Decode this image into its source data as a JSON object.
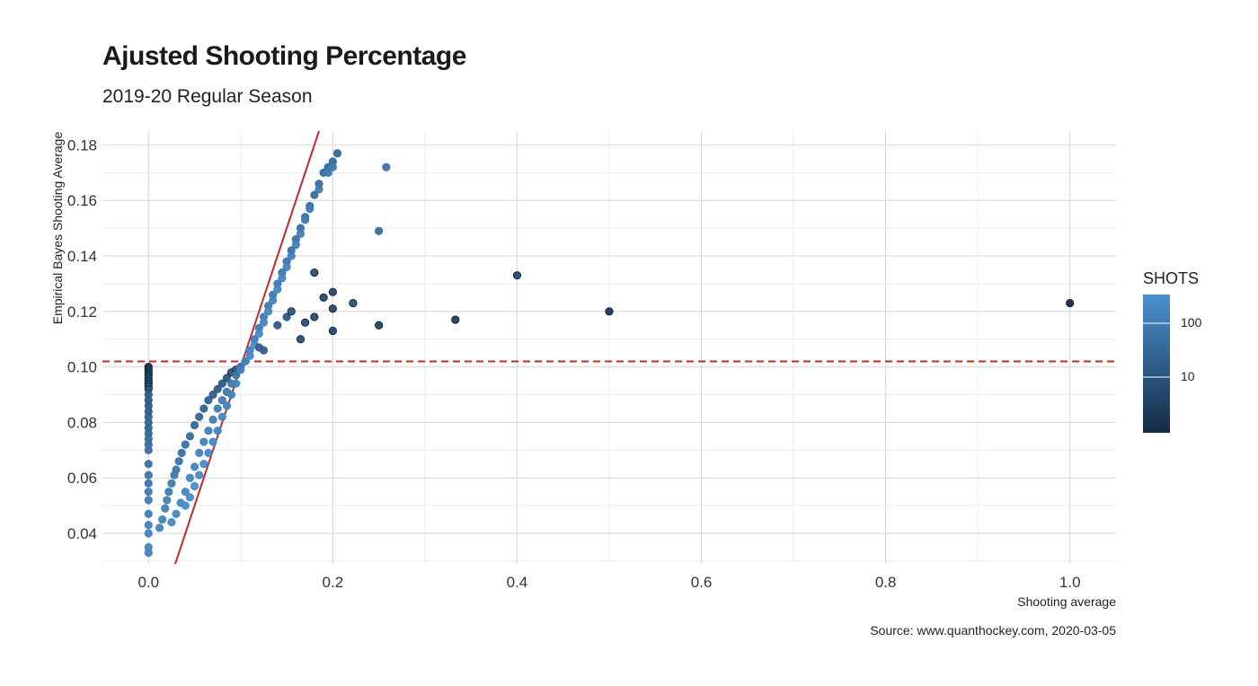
{
  "title": "Ajusted Shooting Percentage",
  "subtitle": "2019-20 Regular Season",
  "caption": "Source: www.quanthockey.com, 2020-03-05",
  "legend": {
    "title": "SHOTS",
    "ticks": [
      "100",
      "10"
    ]
  },
  "colors": {
    "low_shots": "#132b43",
    "high_shots": "#4a90d0",
    "reference": "#c62828",
    "grid": "#dcdcdc"
  },
  "chart_data": {
    "type": "scatter",
    "title": "Ajusted Shooting Percentage",
    "subtitle": "2019-20 Regular Season",
    "xlabel": "Shooting average",
    "ylabel": "Empirical Bayes Shooting Average",
    "xlim": [
      -0.05,
      1.05
    ],
    "ylim": [
      0.029,
      0.185
    ],
    "x_ticks": [
      0.0,
      0.2,
      0.4,
      0.6,
      0.8,
      1.0
    ],
    "x_tick_labels": [
      "0.0",
      "0.2",
      "0.4",
      "0.6",
      "0.8",
      "1.0"
    ],
    "y_ticks": [
      0.04,
      0.06,
      0.08,
      0.1,
      0.12,
      0.14,
      0.16,
      0.18
    ],
    "y_tick_labels": [
      "0.04",
      "0.06",
      "0.08",
      "0.10",
      "0.12",
      "0.14",
      "0.16",
      "0.18"
    ],
    "grid": true,
    "legend_position": "right",
    "color_scale": {
      "variable": "SHOTS",
      "scale": "log",
      "breaks": [
        10,
        100
      ],
      "range": [
        1,
        300
      ]
    },
    "reference_lines": [
      {
        "type": "hline",
        "y": 0.102,
        "style": "dashed",
        "color": "#c62828"
      },
      {
        "type": "abline",
        "intercept": 0,
        "slope": 1,
        "style": "solid",
        "color": "#c62828"
      }
    ],
    "points": [
      {
        "x": 0.0,
        "y": 0.1,
        "shots": 2
      },
      {
        "x": 0.0,
        "y": 0.099,
        "shots": 3
      },
      {
        "x": 0.0,
        "y": 0.098,
        "shots": 4
      },
      {
        "x": 0.0,
        "y": 0.097,
        "shots": 5
      },
      {
        "x": 0.0,
        "y": 0.096,
        "shots": 6
      },
      {
        "x": 0.0,
        "y": 0.095,
        "shots": 7
      },
      {
        "x": 0.0,
        "y": 0.094,
        "shots": 8
      },
      {
        "x": 0.0,
        "y": 0.093,
        "shots": 9
      },
      {
        "x": 0.0,
        "y": 0.092,
        "shots": 10
      },
      {
        "x": 0.0,
        "y": 0.09,
        "shots": 12
      },
      {
        "x": 0.0,
        "y": 0.088,
        "shots": 14
      },
      {
        "x": 0.0,
        "y": 0.086,
        "shots": 16
      },
      {
        "x": 0.0,
        "y": 0.084,
        "shots": 19
      },
      {
        "x": 0.0,
        "y": 0.082,
        "shots": 22
      },
      {
        "x": 0.0,
        "y": 0.08,
        "shots": 25
      },
      {
        "x": 0.0,
        "y": 0.078,
        "shots": 28
      },
      {
        "x": 0.0,
        "y": 0.076,
        "shots": 32
      },
      {
        "x": 0.0,
        "y": 0.074,
        "shots": 36
      },
      {
        "x": 0.0,
        "y": 0.072,
        "shots": 40
      },
      {
        "x": 0.0,
        "y": 0.07,
        "shots": 45
      },
      {
        "x": 0.0,
        "y": 0.065,
        "shots": 55
      },
      {
        "x": 0.0,
        "y": 0.061,
        "shots": 65
      },
      {
        "x": 0.0,
        "y": 0.058,
        "shots": 75
      },
      {
        "x": 0.0,
        "y": 0.055,
        "shots": 85
      },
      {
        "x": 0.0,
        "y": 0.052,
        "shots": 95
      },
      {
        "x": 0.0,
        "y": 0.047,
        "shots": 110
      },
      {
        "x": 0.0,
        "y": 0.043,
        "shots": 125
      },
      {
        "x": 0.0,
        "y": 0.04,
        "shots": 140
      },
      {
        "x": 0.0,
        "y": 0.035,
        "shots": 160
      },
      {
        "x": 0.0,
        "y": 0.033,
        "shots": 175
      },
      {
        "x": 0.012,
        "y": 0.042,
        "shots": 150
      },
      {
        "x": 0.015,
        "y": 0.045,
        "shots": 140
      },
      {
        "x": 0.018,
        "y": 0.049,
        "shots": 120
      },
      {
        "x": 0.02,
        "y": 0.052,
        "shots": 110
      },
      {
        "x": 0.022,
        "y": 0.055,
        "shots": 100
      },
      {
        "x": 0.025,
        "y": 0.058,
        "shots": 90
      },
      {
        "x": 0.028,
        "y": 0.061,
        "shots": 80
      },
      {
        "x": 0.03,
        "y": 0.063,
        "shots": 75
      },
      {
        "x": 0.033,
        "y": 0.066,
        "shots": 65
      },
      {
        "x": 0.036,
        "y": 0.069,
        "shots": 55
      },
      {
        "x": 0.04,
        "y": 0.072,
        "shots": 48
      },
      {
        "x": 0.045,
        "y": 0.075,
        "shots": 40
      },
      {
        "x": 0.05,
        "y": 0.079,
        "shots": 32
      },
      {
        "x": 0.055,
        "y": 0.082,
        "shots": 28
      },
      {
        "x": 0.06,
        "y": 0.085,
        "shots": 24
      },
      {
        "x": 0.065,
        "y": 0.088,
        "shots": 20
      },
      {
        "x": 0.07,
        "y": 0.09,
        "shots": 18
      },
      {
        "x": 0.075,
        "y": 0.092,
        "shots": 16
      },
      {
        "x": 0.08,
        "y": 0.094,
        "shots": 14
      },
      {
        "x": 0.085,
        "y": 0.096,
        "shots": 12
      },
      {
        "x": 0.09,
        "y": 0.098,
        "shots": 11
      },
      {
        "x": 0.095,
        "y": 0.099,
        "shots": 10
      },
      {
        "x": 0.025,
        "y": 0.044,
        "shots": 200
      },
      {
        "x": 0.03,
        "y": 0.047,
        "shots": 190
      },
      {
        "x": 0.035,
        "y": 0.051,
        "shots": 180
      },
      {
        "x": 0.04,
        "y": 0.055,
        "shots": 170
      },
      {
        "x": 0.045,
        "y": 0.06,
        "shots": 160
      },
      {
        "x": 0.05,
        "y": 0.064,
        "shots": 150
      },
      {
        "x": 0.055,
        "y": 0.069,
        "shots": 140
      },
      {
        "x": 0.06,
        "y": 0.073,
        "shots": 130
      },
      {
        "x": 0.065,
        "y": 0.077,
        "shots": 120
      },
      {
        "x": 0.07,
        "y": 0.081,
        "shots": 110
      },
      {
        "x": 0.075,
        "y": 0.085,
        "shots": 100
      },
      {
        "x": 0.08,
        "y": 0.088,
        "shots": 90
      },
      {
        "x": 0.085,
        "y": 0.091,
        "shots": 80
      },
      {
        "x": 0.09,
        "y": 0.094,
        "shots": 70
      },
      {
        "x": 0.095,
        "y": 0.097,
        "shots": 60
      },
      {
        "x": 0.1,
        "y": 0.1,
        "shots": 50
      },
      {
        "x": 0.04,
        "y": 0.05,
        "shots": 250
      },
      {
        "x": 0.045,
        "y": 0.053,
        "shots": 240
      },
      {
        "x": 0.05,
        "y": 0.057,
        "shots": 230
      },
      {
        "x": 0.055,
        "y": 0.061,
        "shots": 220
      },
      {
        "x": 0.06,
        "y": 0.065,
        "shots": 210
      },
      {
        "x": 0.065,
        "y": 0.069,
        "shots": 200
      },
      {
        "x": 0.07,
        "y": 0.073,
        "shots": 190
      },
      {
        "x": 0.075,
        "y": 0.077,
        "shots": 180
      },
      {
        "x": 0.08,
        "y": 0.082,
        "shots": 170
      },
      {
        "x": 0.085,
        "y": 0.086,
        "shots": 160
      },
      {
        "x": 0.09,
        "y": 0.09,
        "shots": 150
      },
      {
        "x": 0.095,
        "y": 0.094,
        "shots": 140
      },
      {
        "x": 0.1,
        "y": 0.099,
        "shots": 130
      },
      {
        "x": 0.105,
        "y": 0.102,
        "shots": 120
      },
      {
        "x": 0.11,
        "y": 0.106,
        "shots": 110
      },
      {
        "x": 0.115,
        "y": 0.11,
        "shots": 100
      },
      {
        "x": 0.12,
        "y": 0.114,
        "shots": 95
      },
      {
        "x": 0.125,
        "y": 0.118,
        "shots": 90
      },
      {
        "x": 0.13,
        "y": 0.122,
        "shots": 85
      },
      {
        "x": 0.135,
        "y": 0.126,
        "shots": 80
      },
      {
        "x": 0.14,
        "y": 0.13,
        "shots": 75
      },
      {
        "x": 0.145,
        "y": 0.134,
        "shots": 70
      },
      {
        "x": 0.15,
        "y": 0.138,
        "shots": 65
      },
      {
        "x": 0.155,
        "y": 0.142,
        "shots": 60
      },
      {
        "x": 0.16,
        "y": 0.146,
        "shots": 55
      },
      {
        "x": 0.165,
        "y": 0.15,
        "shots": 50
      },
      {
        "x": 0.17,
        "y": 0.154,
        "shots": 48
      },
      {
        "x": 0.175,
        "y": 0.158,
        "shots": 45
      },
      {
        "x": 0.18,
        "y": 0.162,
        "shots": 42
      },
      {
        "x": 0.185,
        "y": 0.166,
        "shots": 40
      },
      {
        "x": 0.19,
        "y": 0.17,
        "shots": 38
      },
      {
        "x": 0.195,
        "y": 0.172,
        "shots": 36
      },
      {
        "x": 0.2,
        "y": 0.174,
        "shots": 34
      },
      {
        "x": 0.205,
        "y": 0.177,
        "shots": 32
      },
      {
        "x": 0.11,
        "y": 0.104,
        "shots": 200
      },
      {
        "x": 0.115,
        "y": 0.108,
        "shots": 200
      },
      {
        "x": 0.12,
        "y": 0.112,
        "shots": 200
      },
      {
        "x": 0.125,
        "y": 0.116,
        "shots": 190
      },
      {
        "x": 0.13,
        "y": 0.12,
        "shots": 180
      },
      {
        "x": 0.135,
        "y": 0.124,
        "shots": 170
      },
      {
        "x": 0.14,
        "y": 0.128,
        "shots": 160
      },
      {
        "x": 0.145,
        "y": 0.132,
        "shots": 150
      },
      {
        "x": 0.15,
        "y": 0.136,
        "shots": 140
      },
      {
        "x": 0.155,
        "y": 0.14,
        "shots": 130
      },
      {
        "x": 0.16,
        "y": 0.144,
        "shots": 120
      },
      {
        "x": 0.165,
        "y": 0.148,
        "shots": 110
      },
      {
        "x": 0.17,
        "y": 0.153,
        "shots": 100
      },
      {
        "x": 0.175,
        "y": 0.157,
        "shots": 95
      },
      {
        "x": 0.185,
        "y": 0.164,
        "shots": 90
      },
      {
        "x": 0.195,
        "y": 0.17,
        "shots": 85
      },
      {
        "x": 0.2,
        "y": 0.172,
        "shots": 80
      },
      {
        "x": 0.12,
        "y": 0.107,
        "shots": 20
      },
      {
        "x": 0.125,
        "y": 0.106,
        "shots": 18
      },
      {
        "x": 0.14,
        "y": 0.115,
        "shots": 15
      },
      {
        "x": 0.15,
        "y": 0.118,
        "shots": 12
      },
      {
        "x": 0.155,
        "y": 0.12,
        "shots": 11
      },
      {
        "x": 0.165,
        "y": 0.11,
        "shots": 9
      },
      {
        "x": 0.17,
        "y": 0.116,
        "shots": 8
      },
      {
        "x": 0.18,
        "y": 0.118,
        "shots": 7
      },
      {
        "x": 0.18,
        "y": 0.134,
        "shots": 7
      },
      {
        "x": 0.19,
        "y": 0.125,
        "shots": 6
      },
      {
        "x": 0.2,
        "y": 0.127,
        "shots": 5
      },
      {
        "x": 0.2,
        "y": 0.121,
        "shots": 5
      },
      {
        "x": 0.2,
        "y": 0.113,
        "shots": 5
      },
      {
        "x": 0.222,
        "y": 0.123,
        "shots": 9
      },
      {
        "x": 0.25,
        "y": 0.115,
        "shots": 4
      },
      {
        "x": 0.25,
        "y": 0.149,
        "shots": 40
      },
      {
        "x": 0.258,
        "y": 0.172,
        "shots": 70
      },
      {
        "x": 0.333,
        "y": 0.117,
        "shots": 3
      },
      {
        "x": 0.4,
        "y": 0.133,
        "shots": 5
      },
      {
        "x": 0.5,
        "y": 0.12,
        "shots": 2
      },
      {
        "x": 1.0,
        "y": 0.123,
        "shots": 1
      }
    ]
  }
}
